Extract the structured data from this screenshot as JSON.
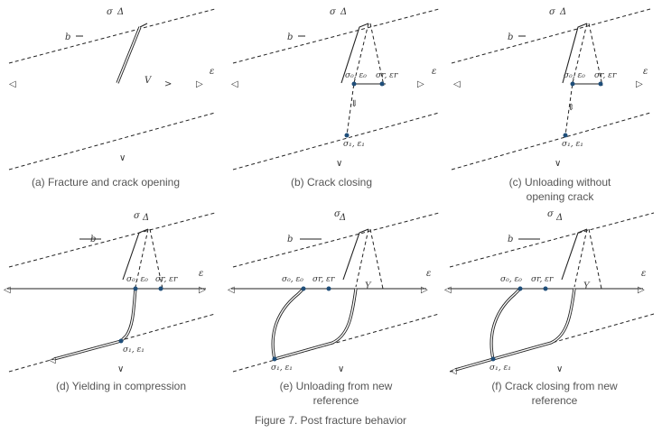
{
  "figure": {
    "caption": "Figure 7. Post fracture behavior"
  },
  "symbols": {
    "sigma": "σ",
    "eps": "ε",
    "b": "b",
    "sig0_eps0": "σ₀, ε₀",
    "sigr_epsr": "σr, εr",
    "sig1_eps1": "σ₁, ε₁"
  },
  "panels": [
    {
      "caption_line1": "(a) Fracture and crack opening",
      "caption_line2": ""
    },
    {
      "caption_line1": "(b) Crack closing",
      "caption_line2": ""
    },
    {
      "caption_line1": "(c) Unloading without",
      "caption_line2": "opening crack"
    },
    {
      "caption_line1": "(d) Yielding in compression",
      "caption_line2": ""
    },
    {
      "caption_line1": "(e) Unloading from new",
      "caption_line2": "reference"
    },
    {
      "caption_line1": "(f) Crack closing from new",
      "caption_line2": "reference"
    }
  ]
}
